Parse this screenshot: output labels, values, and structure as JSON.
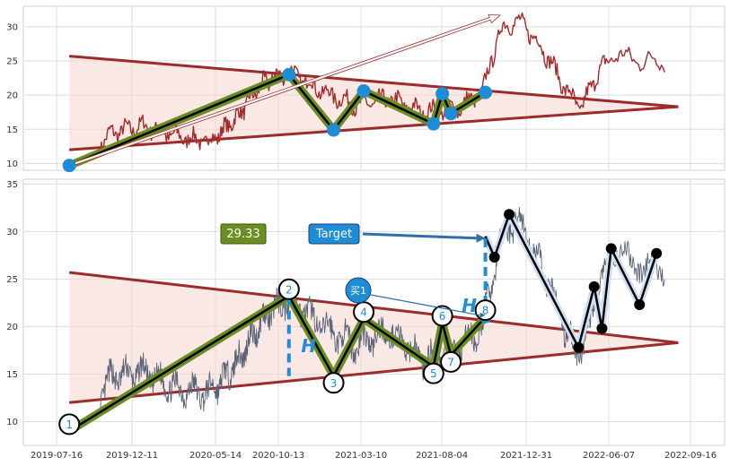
{
  "colors": {
    "price_top": "#a52a2a",
    "price_bottom": "#5a6478",
    "trend_line": "#9c2b2b",
    "triangle_fill": "#f7d8d2",
    "zigzag_outer": "#6b8e23",
    "pivot_blue": "#1f8dd6",
    "projection_outline": "#cfe0f5",
    "label_box_green": "#6b8e23",
    "label_box_blue": "#1f8dd6",
    "h_color": "#1f8dd6"
  },
  "chart_data": [
    {
      "type": "line",
      "panel": "top",
      "ylim": [
        9,
        33
      ],
      "yticks": [
        10,
        15,
        20,
        25,
        30
      ],
      "x_dates": [
        "2019-09-01",
        "2019-11-01",
        "2020-01-01",
        "2020-03-01",
        "2020-05-01",
        "2020-07-01",
        "2020-09-01",
        "2020-11-01",
        "2021-01-01",
        "2021-03-01",
        "2021-05-01",
        "2021-07-01",
        "2021-09-01",
        "2021-10-15",
        "2021-11-15",
        "2021-12-15",
        "2022-01-15",
        "2022-02-15",
        "2022-03-15",
        "2022-04-15",
        "2022-05-15",
        "2022-06-15",
        "2022-07-15",
        "2022-08-15"
      ],
      "price": [
        9.8,
        14.5,
        15.5,
        14.0,
        13.2,
        16.5,
        21.5,
        23.5,
        20.5,
        18.5,
        19.5,
        17.5,
        18.0,
        20.5,
        29.5,
        31.0,
        28.5,
        25.0,
        21.0,
        18.0,
        23.0,
        26.0,
        25.0,
        25.0
      ],
      "triangle": {
        "upper": [
          [
            "2019-08-10",
            25.7
          ],
          [
            "2022-09-01",
            18.3
          ]
        ],
        "lower": [
          [
            "2019-08-10",
            12.0
          ],
          [
            "2022-09-01",
            18.3
          ]
        ]
      },
      "zigzag": [
        [
          "2019-08-10",
          9.7
        ],
        [
          "2020-11-01",
          23.0
        ],
        [
          "2021-01-20",
          14.9
        ],
        [
          "2021-03-15",
          20.6
        ],
        [
          "2021-07-20",
          15.8
        ],
        [
          "2021-08-05",
          20.2
        ],
        [
          "2021-08-20",
          17.3
        ],
        [
          "2021-10-20",
          20.4
        ]
      ],
      "arrow": [
        [
          "2019-08-10",
          9.7
        ],
        [
          "2021-11-15",
          31.7
        ]
      ]
    },
    {
      "type": "line",
      "panel": "bottom",
      "ylim": [
        7.5,
        35.5
      ],
      "yticks": [
        10,
        15,
        20,
        25,
        30,
        35
      ],
      "xticks": [
        "2019-07-16",
        "2019-12-11",
        "2020-05-14",
        "2020-10-13",
        "2021-03-10",
        "2021-08-04",
        "2021-12-31",
        "2022-06-07",
        "2022-09-16"
      ],
      "price": [
        9.5,
        14.8,
        15.2,
        13.5,
        13.0,
        16.0,
        20.5,
        23.0,
        20.0,
        18.0,
        19.5,
        16.5,
        17.5,
        20.0,
        29.0,
        31.5,
        28.0,
        24.0,
        19.5,
        17.0,
        23.5,
        27.5,
        26.5,
        25.5
      ],
      "triangle": {
        "upper": [
          [
            "2019-08-10",
            25.7
          ],
          [
            "2022-09-01",
            18.3
          ]
        ],
        "lower": [
          [
            "2019-08-10",
            12.0
          ],
          [
            "2022-09-01",
            18.3
          ]
        ]
      },
      "zigzag": [
        [
          "2019-08-10",
          9.0
        ],
        [
          "2020-11-01",
          23.2
        ],
        [
          "2021-01-20",
          14.8
        ],
        [
          "2021-03-15",
          20.8
        ],
        [
          "2021-07-20",
          15.8
        ],
        [
          "2021-08-05",
          20.4
        ],
        [
          "2021-08-20",
          17.0
        ],
        [
          "2021-10-20",
          21.0
        ]
      ],
      "pivot_labels": [
        "1",
        "2",
        "3",
        "4",
        "5",
        "6",
        "7",
        "8"
      ],
      "pivot_label_dy": [
        -14,
        -14,
        14,
        -14,
        14,
        -14,
        14,
        -14
      ],
      "projection": [
        [
          "2021-10-20",
          29.5
        ],
        [
          "2021-11-05",
          27.3
        ],
        [
          "2021-12-01",
          31.8
        ],
        [
          "2022-04-10",
          17.8
        ],
        [
          "2022-05-10",
          24.2
        ],
        [
          "2022-05-25",
          19.8
        ],
        [
          "2022-06-10",
          28.2
        ],
        [
          "2022-07-15",
          22.3
        ],
        [
          "2022-08-05",
          27.7
        ]
      ],
      "h_lines": [
        {
          "date": "2020-11-01",
          "from": 23.2,
          "to": 14.8,
          "label": "H"
        },
        {
          "date": "2021-10-20",
          "from": 20.8,
          "to": 29.3,
          "label": "H"
        }
      ],
      "labels": {
        "price_box": "29.33",
        "target": "Target",
        "buy": "买1"
      }
    }
  ]
}
